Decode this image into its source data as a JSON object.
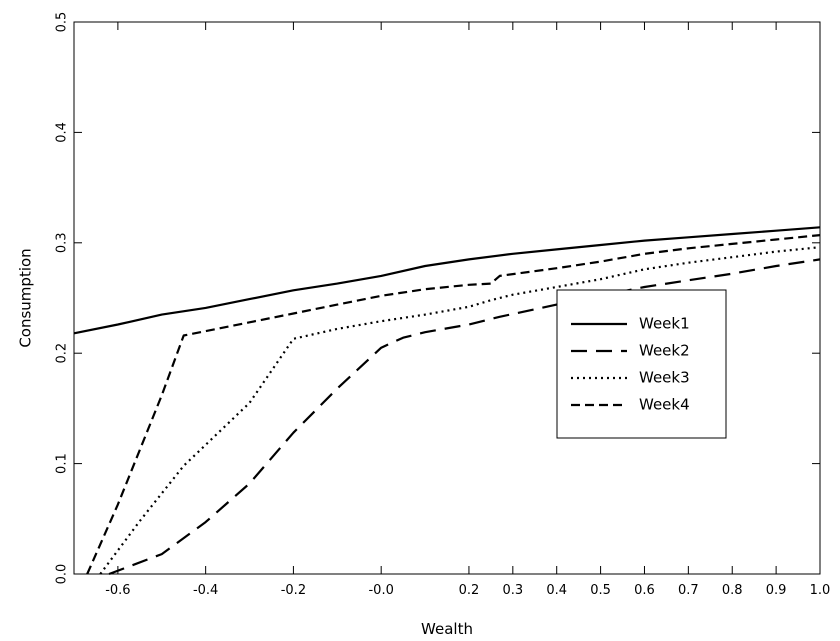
{
  "chart_data": {
    "type": "line",
    "title": "",
    "xlabel": "Wealth",
    "ylabel": "Consumption",
    "xlim": [
      -0.7,
      1.0
    ],
    "ylim": [
      0.0,
      0.5
    ],
    "x_ticks": [
      -0.6,
      -0.4,
      -0.2,
      -0.0,
      0.2,
      0.3,
      0.4,
      0.5,
      0.6,
      0.7,
      0.8,
      0.9,
      1.0
    ],
    "x_tick_labels": [
      "-0.6",
      "-0.4",
      "-0.2",
      "-0.0",
      "0.2",
      "0.3",
      "0.4",
      "0.5",
      "0.6",
      "0.7",
      "0.8",
      "0.9",
      "1.0"
    ],
    "y_ticks": [
      0.0,
      0.1,
      0.2,
      0.3,
      0.4,
      0.5
    ],
    "y_tick_labels": [
      "0.0",
      "0.1",
      "0.2",
      "0.3",
      "0.4",
      "0.5"
    ],
    "grid": false,
    "legend_position": "right",
    "series": [
      {
        "name": "Week1",
        "style": "solid",
        "points": [
          [
            -0.7,
            0.218
          ],
          [
            -0.6,
            0.226
          ],
          [
            -0.5,
            0.235
          ],
          [
            -0.4,
            0.241
          ],
          [
            -0.3,
            0.249
          ],
          [
            -0.2,
            0.257
          ],
          [
            -0.1,
            0.263
          ],
          [
            0.0,
            0.27
          ],
          [
            0.1,
            0.279
          ],
          [
            0.2,
            0.285
          ],
          [
            0.3,
            0.29
          ],
          [
            0.4,
            0.294
          ],
          [
            0.5,
            0.298
          ],
          [
            0.6,
            0.302
          ],
          [
            0.7,
            0.305
          ],
          [
            0.8,
            0.308
          ],
          [
            0.9,
            0.311
          ],
          [
            1.0,
            0.314
          ]
        ]
      },
      {
        "name": "Week2",
        "style": "long-dash",
        "points": [
          [
            -0.62,
            0.0
          ],
          [
            -0.5,
            0.018
          ],
          [
            -0.4,
            0.047
          ],
          [
            -0.3,
            0.082
          ],
          [
            -0.2,
            0.128
          ],
          [
            -0.1,
            0.168
          ],
          [
            0.0,
            0.205
          ],
          [
            0.05,
            0.214
          ],
          [
            0.1,
            0.219
          ],
          [
            0.2,
            0.226
          ],
          [
            0.27,
            0.233
          ],
          [
            0.4,
            0.244
          ],
          [
            0.5,
            0.252
          ],
          [
            0.6,
            0.26
          ],
          [
            0.7,
            0.266
          ],
          [
            0.8,
            0.272
          ],
          [
            0.9,
            0.279
          ],
          [
            1.0,
            0.285
          ]
        ]
      },
      {
        "name": "Week3",
        "style": "dotted",
        "points": [
          [
            -0.64,
            0.0
          ],
          [
            -0.55,
            0.048
          ],
          [
            -0.45,
            0.098
          ],
          [
            -0.3,
            0.155
          ],
          [
            -0.2,
            0.213
          ],
          [
            -0.1,
            0.222
          ],
          [
            0.0,
            0.229
          ],
          [
            0.1,
            0.235
          ],
          [
            0.2,
            0.242
          ],
          [
            0.25,
            0.248
          ],
          [
            0.3,
            0.253
          ],
          [
            0.4,
            0.26
          ],
          [
            0.5,
            0.267
          ],
          [
            0.6,
            0.276
          ],
          [
            0.7,
            0.282
          ],
          [
            0.8,
            0.287
          ],
          [
            0.9,
            0.292
          ],
          [
            1.0,
            0.296
          ]
        ]
      },
      {
        "name": "Week4",
        "style": "dashed",
        "points": [
          [
            -0.67,
            0.0
          ],
          [
            -0.6,
            0.063
          ],
          [
            -0.5,
            0.162
          ],
          [
            -0.45,
            0.216
          ],
          [
            -0.3,
            0.228
          ],
          [
            -0.2,
            0.236
          ],
          [
            -0.1,
            0.244
          ],
          [
            0.0,
            0.252
          ],
          [
            0.1,
            0.258
          ],
          [
            0.2,
            0.262
          ],
          [
            0.25,
            0.263
          ],
          [
            0.27,
            0.27
          ],
          [
            0.4,
            0.277
          ],
          [
            0.5,
            0.283
          ],
          [
            0.6,
            0.29
          ],
          [
            0.7,
            0.295
          ],
          [
            0.8,
            0.299
          ],
          [
            0.9,
            0.303
          ],
          [
            1.0,
            0.307
          ]
        ]
      }
    ]
  }
}
